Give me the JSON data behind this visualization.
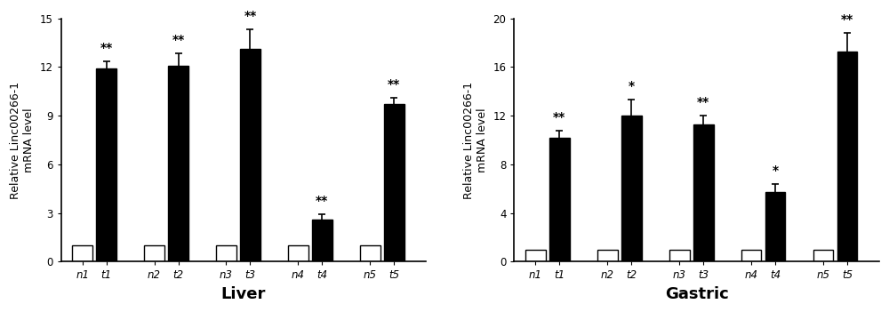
{
  "liver": {
    "categories": [
      "n1",
      "t1",
      "n2",
      "t2",
      "n3",
      "t3",
      "n4",
      "t4",
      "n5",
      "t5"
    ],
    "values": [
      1.0,
      11.9,
      1.0,
      12.1,
      1.0,
      13.1,
      1.0,
      2.6,
      1.0,
      9.7
    ],
    "errors": [
      0.0,
      0.45,
      0.0,
      0.75,
      0.0,
      1.2,
      0.0,
      0.3,
      0.0,
      0.4
    ],
    "colors": [
      "white",
      "black",
      "white",
      "black",
      "white",
      "black",
      "white",
      "black",
      "white",
      "black"
    ],
    "significance": [
      "",
      "**",
      "",
      "**",
      "",
      "**",
      "",
      "**",
      "",
      "**"
    ],
    "ylim": [
      0,
      15
    ],
    "yticks": [
      0,
      3,
      6,
      9,
      12,
      15
    ],
    "xlabel": "Liver",
    "ylabel": "Relative Linc00266-1\nmRNA level"
  },
  "gastric": {
    "categories": [
      "n1",
      "t1",
      "n2",
      "t2",
      "n3",
      "t3",
      "n4",
      "t4",
      "n5",
      "t5"
    ],
    "values": [
      1.0,
      10.2,
      1.0,
      12.0,
      1.0,
      11.3,
      1.0,
      5.7,
      1.0,
      17.3
    ],
    "errors": [
      0.0,
      0.55,
      0.0,
      1.3,
      0.0,
      0.7,
      0.0,
      0.65,
      0.0,
      1.5
    ],
    "colors": [
      "white",
      "black",
      "white",
      "black",
      "white",
      "black",
      "white",
      "black",
      "white",
      "black"
    ],
    "significance": [
      "",
      "**",
      "",
      "*",
      "",
      "**",
      "",
      "*",
      "",
      "**"
    ],
    "ylim": [
      0,
      20
    ],
    "yticks": [
      0,
      4,
      8,
      12,
      16,
      20
    ],
    "xlabel": "Gastric",
    "ylabel": "Relative Linc00266-1\nmRNA level"
  },
  "bar_width": 0.38,
  "figure_width": 10.0,
  "figure_height": 3.51,
  "dpi": 100,
  "background_color": "#ffffff",
  "sig_fontsize": 10,
  "xlabel_fontsize": 13,
  "ylabel_fontsize": 9.0,
  "tick_fontsize": 8.5
}
